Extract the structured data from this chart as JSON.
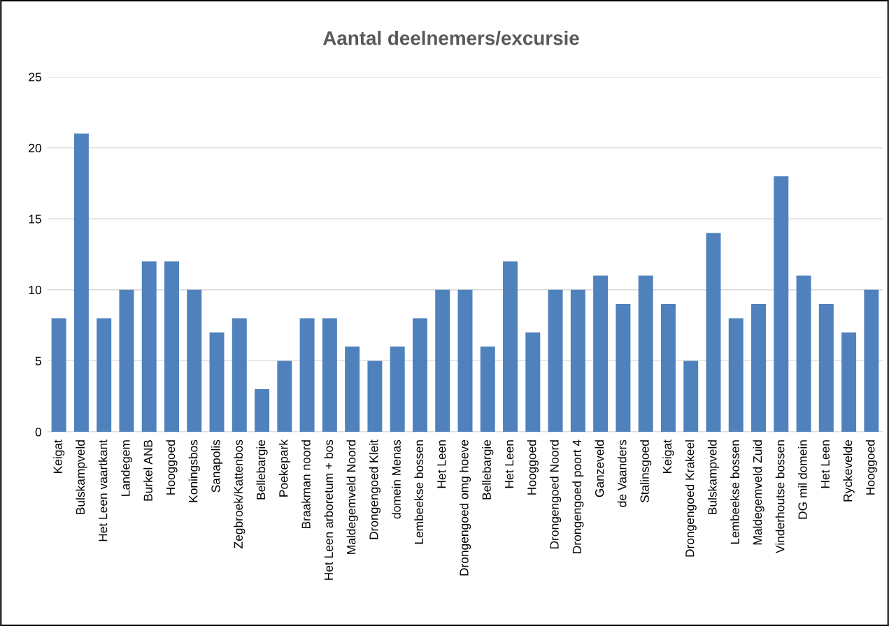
{
  "chart_data": {
    "type": "bar",
    "title": "Aantal deelnemers/excursie",
    "categories": [
      "Keigat",
      "Bulskampveld",
      "Het Leen vaartkant",
      "Landegem",
      "Burkel ANB",
      "Hooggoed",
      "Koningsbos",
      "Sanapolis",
      "Zegbroek/Kattenbos",
      "Bellebargie",
      "Poekepark",
      "Braakman noord",
      "Het Leen arboretum + bos",
      "Maldegemveld Noord",
      "Drongengoed Kleit",
      "domein Menas",
      "Lembeekse bossen",
      "Het Leen",
      "Drongengoed omg hoeve",
      "Bellebargie",
      "Het Leen",
      "Hooggoed",
      "Drongengoed Noord",
      "Drongengoed poort 4",
      "Ganzeveld",
      "de Vaanders",
      "Stalinsgoed",
      "Keigat",
      "Drongengoed Krakeel",
      "Bulskampveld",
      "Lembeekse bossen",
      "Maldegemveld Zuid",
      "Vinderhoutse bossen",
      "DG mil domein",
      "Het Leen",
      "Ryckevelde",
      "Hooggoed"
    ],
    "values": [
      8,
      21,
      8,
      10,
      12,
      12,
      10,
      7,
      8,
      3,
      5,
      8,
      8,
      6,
      5,
      6,
      8,
      10,
      10,
      6,
      12,
      7,
      10,
      10,
      11,
      9,
      11,
      9,
      5,
      14,
      8,
      9,
      18,
      11,
      9,
      7,
      10
    ],
    "color": "#4f81bd",
    "ylim": [
      0,
      25
    ],
    "yticks": [
      0,
      5,
      10,
      15,
      20,
      25
    ],
    "grid": "y",
    "legend": false
  }
}
